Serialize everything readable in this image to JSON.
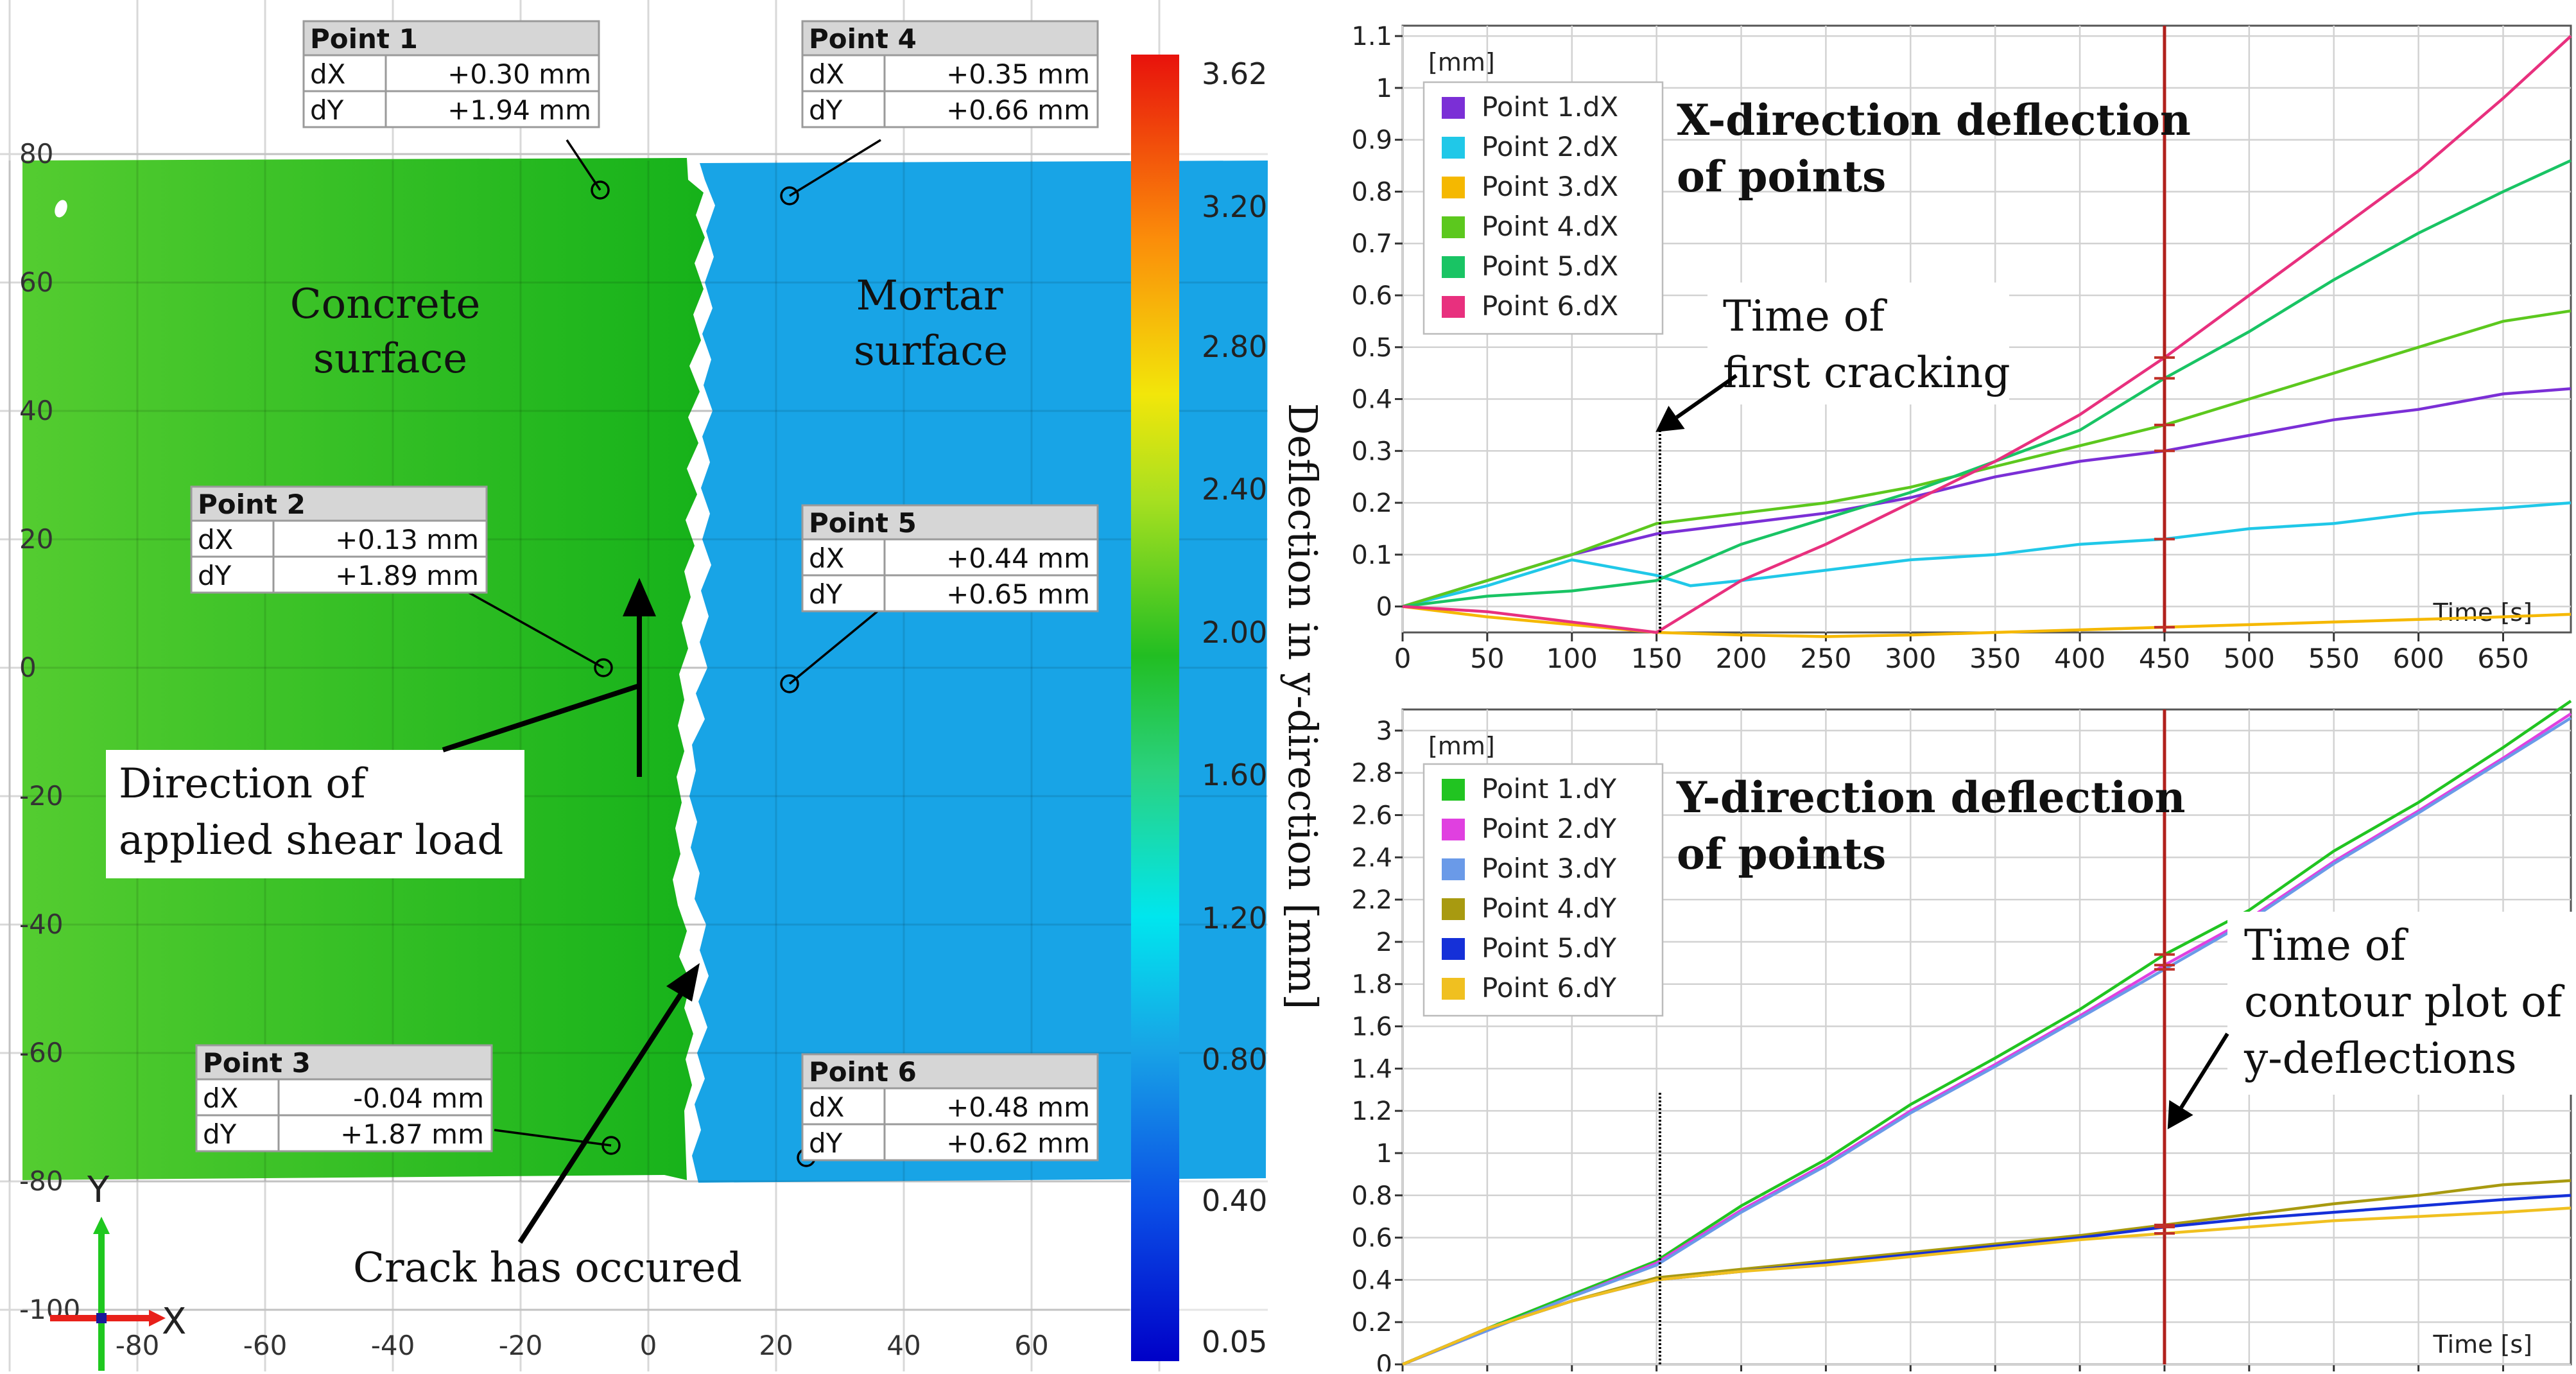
{
  "contour": {
    "x_ticks": [
      "-80",
      "-60",
      "-40",
      "-20",
      "0",
      "20",
      "40",
      "60"
    ],
    "y_ticks": [
      "80",
      "60",
      "40",
      "20",
      "0",
      "-20",
      "-40",
      "-60",
      "-80",
      "-100"
    ],
    "axis_x_label": "X",
    "axis_y_label": "Y",
    "surface_left": [
      "Concrete",
      "surface"
    ],
    "surface_right": [
      "Mortar",
      "surface"
    ],
    "load_label": [
      "Direction of",
      "applied shear load"
    ],
    "crack_label": "Crack has occured",
    "colors": {
      "concrete": "#1fb81c",
      "concrete_light": "#4ccb2a",
      "mortar": "#18a4e6",
      "arrow": "#000000"
    },
    "points": [
      {
        "name": "Point 1",
        "dx": "+0.30 mm",
        "dy": "+1.94 mm"
      },
      {
        "name": "Point 2",
        "dx": "+0.13 mm",
        "dy": "+1.89 mm"
      },
      {
        "name": "Point 3",
        "dx": "-0.04 mm",
        "dy": "+1.87 mm"
      },
      {
        "name": "Point 4",
        "dx": "+0.35 mm",
        "dy": "+0.66 mm"
      },
      {
        "name": "Point 5",
        "dx": "+0.44 mm",
        "dy": "+0.65 mm"
      },
      {
        "name": "Point 6",
        "dx": "+0.48 mm",
        "dy": "+0.62 mm"
      }
    ],
    "row_dx": "dX",
    "row_dy": "dY"
  },
  "colorbar": {
    "ticks": [
      "3.62",
      "3.20",
      "2.80",
      "2.40",
      "2.00",
      "1.60",
      "1.20",
      "0.80",
      "0.40",
      "0.05"
    ],
    "label": "Deflection in y-direction [mm]"
  },
  "chart_data": [
    {
      "type": "line",
      "title": [
        "X-direction deflection",
        "of points"
      ],
      "ylabel": "[mm]",
      "xlabel": "Time [s]",
      "xlim": [
        0,
        690
      ],
      "ylim": [
        -0.05,
        1.12
      ],
      "x_ticks": [
        0,
        50,
        100,
        150,
        200,
        250,
        300,
        350,
        400,
        450,
        500,
        550,
        600,
        650
      ],
      "y_ticks": [
        0,
        0.1,
        0.2,
        0.3,
        0.4,
        0.5,
        0.6,
        0.7,
        0.8,
        0.9,
        1,
        1.1
      ],
      "grid": true,
      "legend": "top-left",
      "annotation": [
        "Time of",
        "first cracking"
      ],
      "markers": [
        152,
        450
      ],
      "series": [
        {
          "name": "Point 1.dX",
          "color": "#7b2fd6",
          "x": [
            0,
            50,
            100,
            150,
            200,
            250,
            300,
            350,
            400,
            450,
            500,
            550,
            600,
            650,
            690
          ],
          "y": [
            0,
            0.05,
            0.1,
            0.14,
            0.16,
            0.18,
            0.21,
            0.25,
            0.28,
            0.3,
            0.33,
            0.36,
            0.38,
            0.41,
            0.42
          ]
        },
        {
          "name": "Point 2.dX",
          "color": "#20c8e8",
          "x": [
            0,
            50,
            100,
            150,
            170,
            200,
            250,
            300,
            350,
            400,
            450,
            500,
            550,
            600,
            650,
            690
          ],
          "y": [
            0,
            0.04,
            0.09,
            0.06,
            0.04,
            0.05,
            0.07,
            0.09,
            0.1,
            0.12,
            0.13,
            0.15,
            0.16,
            0.18,
            0.19,
            0.2
          ]
        },
        {
          "name": "Point 3.dX",
          "color": "#f5b800",
          "x": [
            0,
            50,
            100,
            150,
            200,
            250,
            300,
            350,
            400,
            450,
            500,
            550,
            600,
            650,
            690
          ],
          "y": [
            0,
            -0.02,
            -0.035,
            -0.05,
            -0.055,
            -0.058,
            -0.055,
            -0.05,
            -0.045,
            -0.04,
            -0.035,
            -0.03,
            -0.025,
            -0.02,
            -0.015
          ]
        },
        {
          "name": "Point 4.dX",
          "color": "#5cc81e",
          "x": [
            0,
            50,
            100,
            150,
            200,
            250,
            300,
            350,
            400,
            450,
            500,
            550,
            600,
            650,
            690
          ],
          "y": [
            0,
            0.05,
            0.1,
            0.16,
            0.18,
            0.2,
            0.23,
            0.27,
            0.31,
            0.35,
            0.4,
            0.45,
            0.5,
            0.55,
            0.57
          ]
        },
        {
          "name": "Point 5.dX",
          "color": "#19c464",
          "x": [
            0,
            50,
            100,
            150,
            200,
            250,
            300,
            350,
            400,
            450,
            500,
            550,
            600,
            650,
            690
          ],
          "y": [
            0,
            0.02,
            0.03,
            0.05,
            0.12,
            0.17,
            0.22,
            0.28,
            0.34,
            0.44,
            0.53,
            0.63,
            0.72,
            0.8,
            0.86
          ]
        },
        {
          "name": "Point 6.dX",
          "color": "#e8307e",
          "x": [
            0,
            50,
            100,
            150,
            200,
            250,
            300,
            350,
            400,
            450,
            500,
            550,
            600,
            650,
            690
          ],
          "y": [
            0,
            -0.01,
            -0.03,
            -0.05,
            0.05,
            0.12,
            0.2,
            0.28,
            0.37,
            0.48,
            0.6,
            0.72,
            0.84,
            0.98,
            1.1
          ]
        }
      ]
    },
    {
      "type": "line",
      "title": [
        "Y-direction deflection",
        "of points"
      ],
      "ylabel": "[mm]",
      "xlabel": "Time [s]",
      "xlim": [
        0,
        690
      ],
      "ylim": [
        0,
        3.1
      ],
      "x_ticks": [
        0,
        50,
        100,
        150,
        200,
        250,
        300,
        350,
        400,
        450,
        500,
        550,
        600,
        650
      ],
      "y_ticks": [
        0,
        0.2,
        0.4,
        0.6,
        0.8,
        1,
        1.2,
        1.4,
        1.6,
        1.8,
        2,
        2.2,
        2.4,
        2.6,
        2.8,
        3
      ],
      "grid": true,
      "legend": "top-left",
      "annotation": [
        "Time of",
        "contour plot of",
        "y-deflections"
      ],
      "markers": [
        152,
        450
      ],
      "series": [
        {
          "name": "Point 1.dY",
          "color": "#21c421",
          "x": [
            0,
            50,
            100,
            150,
            200,
            250,
            300,
            350,
            400,
            450,
            500,
            550,
            600,
            650,
            690
          ],
          "y": [
            0,
            0.17,
            0.33,
            0.49,
            0.75,
            0.97,
            1.23,
            1.45,
            1.68,
            1.94,
            2.15,
            2.43,
            2.66,
            2.92,
            3.14
          ]
        },
        {
          "name": "Point 2.dY",
          "color": "#e040e0",
          "x": [
            0,
            50,
            100,
            150,
            200,
            250,
            300,
            350,
            400,
            450,
            500,
            550,
            600,
            650,
            690
          ],
          "y": [
            0,
            0.16,
            0.32,
            0.48,
            0.73,
            0.95,
            1.2,
            1.42,
            1.65,
            1.89,
            2.11,
            2.38,
            2.62,
            2.87,
            3.08
          ]
        },
        {
          "name": "Point 3.dY",
          "color": "#6a9ae8",
          "x": [
            0,
            50,
            100,
            150,
            200,
            250,
            300,
            350,
            400,
            450,
            500,
            550,
            600,
            650,
            690
          ],
          "y": [
            0,
            0.16,
            0.32,
            0.47,
            0.72,
            0.94,
            1.19,
            1.41,
            1.64,
            1.87,
            2.1,
            2.37,
            2.61,
            2.86,
            3.06
          ]
        },
        {
          "name": "Point 4.dY",
          "color": "#a89a10",
          "x": [
            0,
            50,
            100,
            150,
            200,
            250,
            300,
            350,
            400,
            450,
            500,
            550,
            600,
            650,
            690
          ],
          "y": [
            0,
            0.17,
            0.3,
            0.41,
            0.45,
            0.49,
            0.53,
            0.57,
            0.61,
            0.66,
            0.71,
            0.76,
            0.8,
            0.85,
            0.87
          ]
        },
        {
          "name": "Point 5.dY",
          "color": "#1530d8",
          "x": [
            0,
            50,
            100,
            150,
            200,
            250,
            300,
            350,
            400,
            450,
            500,
            550,
            600,
            650,
            690
          ],
          "y": [
            0,
            0.17,
            0.3,
            0.4,
            0.44,
            0.48,
            0.52,
            0.56,
            0.6,
            0.65,
            0.69,
            0.72,
            0.75,
            0.78,
            0.8
          ]
        },
        {
          "name": "Point 6.dY",
          "color": "#f0c020",
          "x": [
            0,
            50,
            100,
            150,
            200,
            250,
            300,
            350,
            400,
            450,
            500,
            550,
            600,
            650,
            690
          ],
          "y": [
            0,
            0.17,
            0.3,
            0.4,
            0.44,
            0.47,
            0.51,
            0.55,
            0.59,
            0.62,
            0.65,
            0.68,
            0.7,
            0.72,
            0.74
          ]
        }
      ]
    }
  ]
}
